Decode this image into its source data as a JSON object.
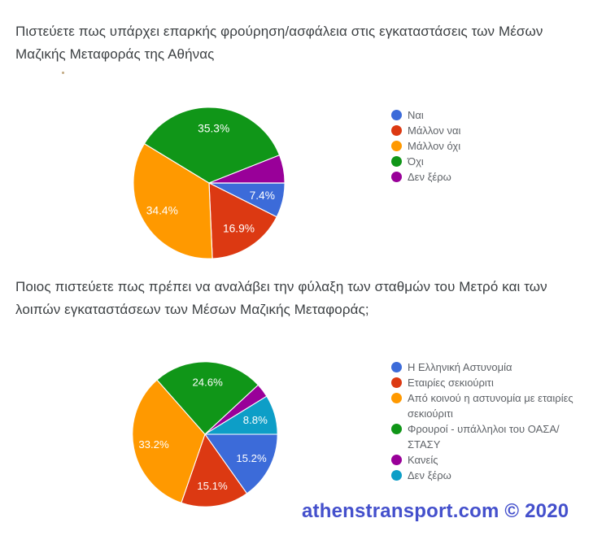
{
  "page": {
    "background": "#ffffff"
  },
  "sections": [
    {
      "title_lines": [
        "Πιστεύετε πως υπάρχει επαρκής φρούρηση/ασφάλεια στις εγκαταστάσεις των Μέσων",
        "Μαζικής Μεταφοράς της Αθήνας"
      ]
    },
    {
      "title_lines": [
        "Ποιος πιστεύετε πως πρέπει να αναλάβει την φύλαξη των σταθμών του Μετρό και των",
        "λοιπών εγκαταστάσεων των Μέσων Μαζικής Μεταφοράς;"
      ]
    }
  ],
  "chart_data": [
    {
      "type": "pie",
      "title": "Πιστεύετε πως υπάρχει επαρκής φρούρηση/ασφάλεια στις εγκαταστάσεις των Μέσων Μαζικής Μεταφοράς της Αθήνας",
      "legend_position": "right",
      "direction": "clockwise",
      "start_angle_deg": 90,
      "categories": [
        "Ναι",
        "Μάλλον ναι",
        "Μάλλον όχι",
        "Όχι",
        "Δεν ξέρω"
      ],
      "values": [
        7.4,
        16.9,
        34.4,
        35.3,
        6.0
      ],
      "colors": [
        "#3c6bd9",
        "#dc3912",
        "#ff9900",
        "#109618",
        "#990099"
      ],
      "slice_labels": [
        "7.4%",
        "16.9%",
        "34.4%",
        "35.3%",
        ""
      ],
      "slice_label_color": "#ffffff"
    },
    {
      "type": "pie",
      "title": "Ποιος πιστεύετε πως πρέπει να αναλάβει την φύλαξη των σταθμών του Μετρό και των λοιπών εγκαταστάσεων των Μέσων Μαζικής Μεταφοράς;",
      "legend_position": "right",
      "direction": "clockwise",
      "start_angle_deg": 90,
      "categories": [
        "Η Ελληνική Αστυνομία",
        "Εταιρίες σεκιούριτι",
        "Από κοινού η αστυνομία με εταιρίες σεκιούριτι",
        "Φρουροί - υπάλληλοι του ΟΑΣΑ/ΣΤΑΣΥ",
        "Κανείς",
        "Δεν ξέρω"
      ],
      "values": [
        15.2,
        15.1,
        33.2,
        24.6,
        3.1,
        8.8
      ],
      "colors": [
        "#3c6bd9",
        "#dc3912",
        "#ff9900",
        "#109618",
        "#990099",
        "#0d9ec7"
      ],
      "slice_labels": [
        "15.2%",
        "15.1%",
        "33.2%",
        "24.6%",
        "",
        "8.8%"
      ],
      "slice_label_color": "#ffffff"
    }
  ],
  "footer": {
    "text": "athenstransport.com © 2020",
    "color": "#4450cc"
  }
}
